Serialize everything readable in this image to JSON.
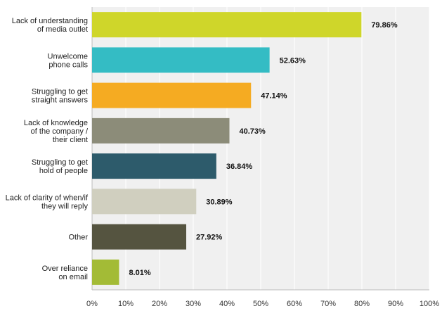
{
  "chart_data": {
    "type": "bar",
    "orientation": "horizontal",
    "categories": [
      [
        "Lack of understanding",
        "of media outlet"
      ],
      [
        "Unwelcome",
        "phone calls"
      ],
      [
        "Struggling to get",
        "straight answers"
      ],
      [
        "Lack of knowledge",
        "of the company /",
        "their client"
      ],
      [
        "Struggling to get",
        "hold of people"
      ],
      [
        "Lack of clarity of when/if",
        "they will reply"
      ],
      [
        "Other"
      ],
      [
        "Over reliance",
        "on email"
      ]
    ],
    "values": [
      79.86,
      52.63,
      47.14,
      40.73,
      36.84,
      30.89,
      27.92,
      8.01
    ],
    "value_labels": [
      "79.86%",
      "52.63%",
      "47.14%",
      "40.73%",
      "36.84%",
      "30.89%",
      "27.92%",
      "8.01%"
    ],
    "colors": [
      "#cfd62a",
      "#34bcc4",
      "#f5ab22",
      "#8c8c79",
      "#2d5b6b",
      "#d0cfbf",
      "#555440",
      "#a3bb36"
    ],
    "xlim": [
      0,
      100
    ],
    "x_ticks": [
      "0%",
      "10%",
      "20%",
      "30%",
      "40%",
      "50%",
      "60%",
      "70%",
      "80%",
      "90%",
      "100%"
    ],
    "grid": true,
    "plot_background": "#f0f0f0",
    "title": "",
    "xlabel": "",
    "ylabel": ""
  }
}
